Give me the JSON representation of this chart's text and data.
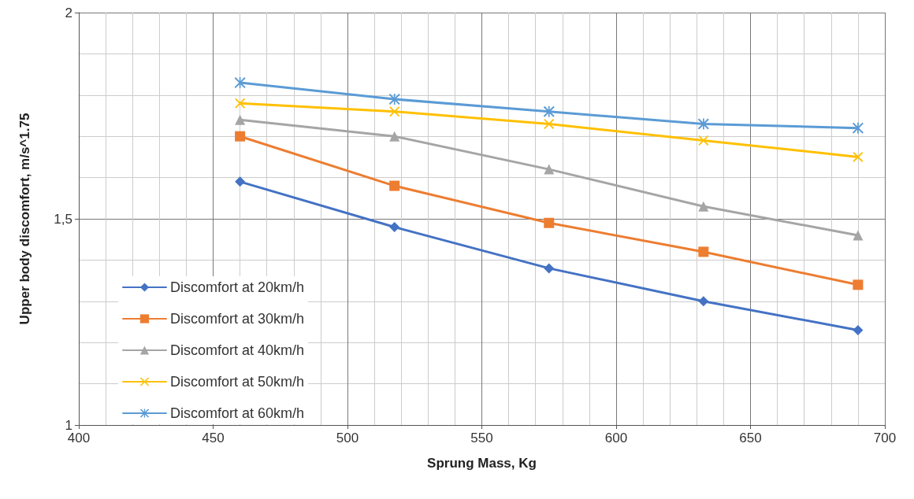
{
  "chart_data": {
    "type": "line",
    "xlabel": "Sprung Mass, Kg",
    "ylabel": "Upper body discomfort, m/s^1.75",
    "x": [
      460,
      517.5,
      575,
      632.5,
      690
    ],
    "series": [
      {
        "name": "Discomfort at 20km/h",
        "color": "#4472c4",
        "marker": "diamond",
        "values": [
          1.59,
          1.48,
          1.38,
          1.3,
          1.23
        ]
      },
      {
        "name": "Discomfort at 30km/h",
        "color": "#ed7d31",
        "marker": "square",
        "values": [
          1.7,
          1.58,
          1.49,
          1.42,
          1.34
        ]
      },
      {
        "name": "Discomfort at 40km/h",
        "color": "#a5a5a5",
        "marker": "triangle",
        "values": [
          1.74,
          1.7,
          1.62,
          1.53,
          1.46
        ]
      },
      {
        "name": "Discomfort at 50km/h",
        "color": "#ffc000",
        "marker": "cross",
        "values": [
          1.78,
          1.76,
          1.73,
          1.69,
          1.65
        ]
      },
      {
        "name": "Discomfort at 60km/h",
        "color": "#5b9bd5",
        "marker": "star",
        "values": [
          1.83,
          1.79,
          1.76,
          1.73,
          1.72
        ]
      }
    ],
    "xlim": [
      400,
      700
    ],
    "xticks": [
      400,
      450,
      500,
      550,
      600,
      650,
      700
    ],
    "ylim": [
      1,
      2
    ],
    "yticks": [
      1,
      {
        "value": 1.5,
        "label": "1,5"
      },
      2
    ],
    "grid": true,
    "legend": "bottom left",
    "line_style": "solid"
  }
}
